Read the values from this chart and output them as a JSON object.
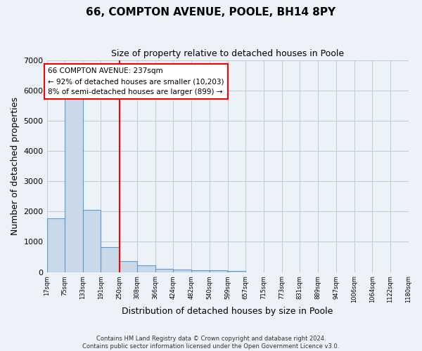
{
  "title": "66, COMPTON AVENUE, POOLE, BH14 8PY",
  "subtitle": "Size of property relative to detached houses in Poole",
  "xlabel": "Distribution of detached houses by size in Poole",
  "ylabel": "Number of detached properties",
  "bar_left_edges": [
    17,
    75,
    133,
    191,
    250,
    308,
    366,
    424,
    482,
    540,
    599,
    657,
    715,
    773,
    831,
    889,
    947,
    1006,
    1064,
    1122
  ],
  "bar_heights": [
    1780,
    5750,
    2050,
    830,
    370,
    230,
    110,
    80,
    60,
    50,
    40,
    0,
    0,
    0,
    0,
    0,
    0,
    0,
    0,
    0
  ],
  "bin_width": 58,
  "tick_labels": [
    "17sqm",
    "75sqm",
    "133sqm",
    "191sqm",
    "250sqm",
    "308sqm",
    "366sqm",
    "424sqm",
    "482sqm",
    "540sqm",
    "599sqm",
    "657sqm",
    "715sqm",
    "773sqm",
    "831sqm",
    "889sqm",
    "947sqm",
    "1006sqm",
    "1064sqm",
    "1122sqm",
    "1180sqm"
  ],
  "bar_color": "#c9d9ea",
  "bar_edge_color": "#5b9bd5",
  "vline_x": 250,
  "vline_color": "red",
  "annotation_title": "66 COMPTON AVENUE: 237sqm",
  "annotation_line1": "← 92% of detached houses are smaller (10,203)",
  "annotation_line2": "8% of semi-detached houses are larger (899) →",
  "annotation_box_color": "white",
  "annotation_box_edge_color": "red",
  "ylim": [
    0,
    7000
  ],
  "yticks": [
    0,
    1000,
    2000,
    3000,
    4000,
    5000,
    6000,
    7000
  ],
  "grid_color": "#b8cce0",
  "background_color": "#edf2f9",
  "footer_line1": "Contains HM Land Registry data © Crown copyright and database right 2024.",
  "footer_line2": "Contains public sector information licensed under the Open Government Licence v3.0."
}
